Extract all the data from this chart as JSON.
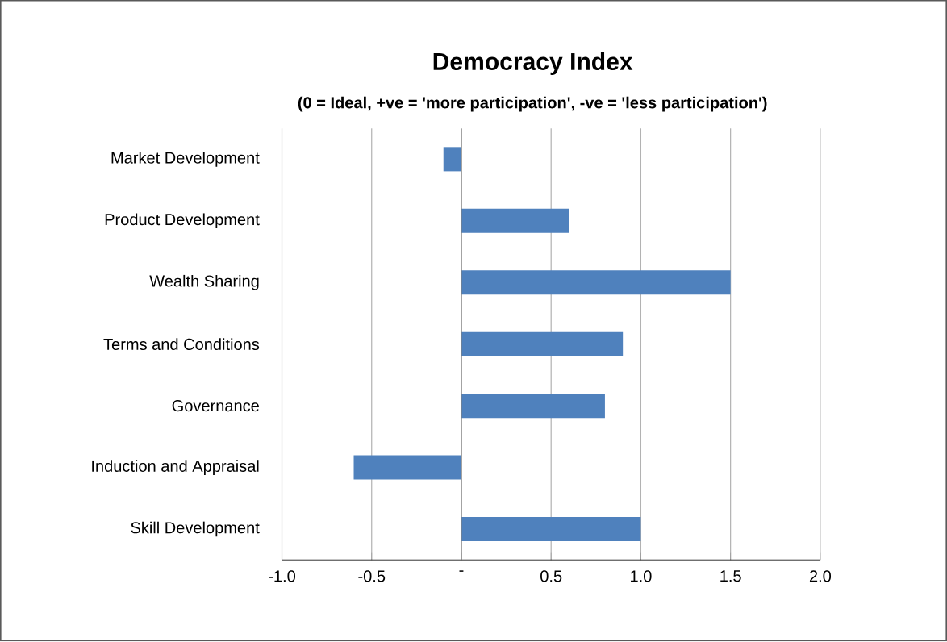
{
  "chart_data": {
    "type": "bar",
    "orientation": "horizontal",
    "title": "Democracy Index",
    "subtitle": "(0 = Ideal, +ve = 'more participation', -ve = 'less participation')",
    "categories": [
      "Market Development",
      "Product Development",
      "Wealth Sharing",
      "Terms and Conditions",
      "Governance",
      "Induction and Appraisal",
      "Skill Development"
    ],
    "values": [
      -0.1,
      0.6,
      1.5,
      0.9,
      0.8,
      -0.6,
      1.0
    ],
    "color": "#4f81bd",
    "xlim": [
      -1.0,
      2.0
    ],
    "xticks": [
      {
        "value": -1.0,
        "label": "-1.0"
      },
      -0.5,
      {
        "value": 0,
        "label": "-"
      },
      0.5,
      {
        "value": 1.0,
        "label": "1.0"
      },
      1.5,
      {
        "value": 2.0,
        "label": "2.0"
      }
    ],
    "grid": "x"
  }
}
